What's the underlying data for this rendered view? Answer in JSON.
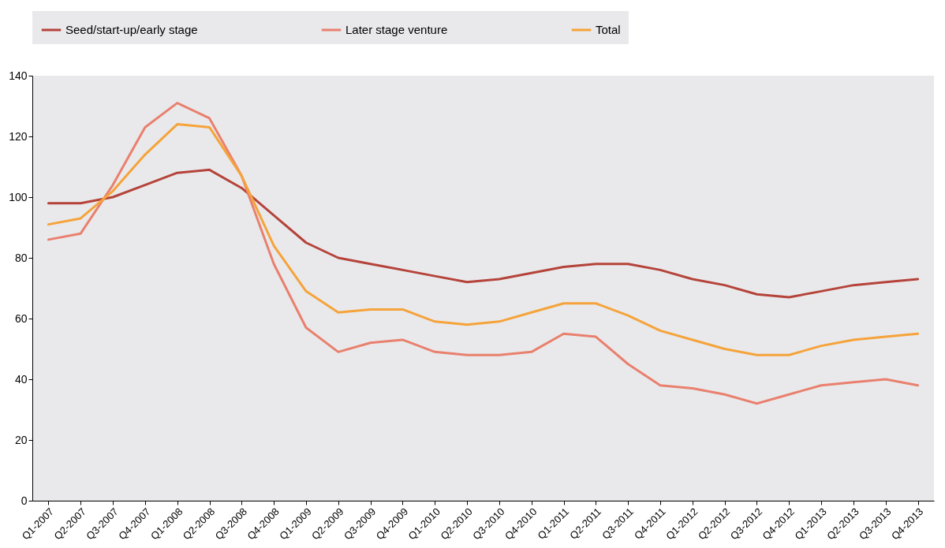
{
  "chart_data": {
    "type": "line",
    "categories": [
      "Q1-2007",
      "Q2-2007",
      "Q3-2007",
      "Q4-2007",
      "Q1-2008",
      "Q2-2008",
      "Q3-2008",
      "Q4-2008",
      "Q1-2009",
      "Q2-2009",
      "Q3-2009",
      "Q4-2009",
      "Q1-2010",
      "Q2-2010",
      "Q3-2010",
      "Q4-2010",
      "Q1-2011",
      "Q2-2011",
      "Q3-2011",
      "Q4-2011",
      "Q1-2012",
      "Q2-2012",
      "Q3-2012",
      "Q4-2012",
      "Q1-2013",
      "Q2-2013",
      "Q3-2013",
      "Q4-2013"
    ],
    "series": [
      {
        "name": "Seed/start-up/early stage",
        "color": "#b5433a",
        "values": [
          98,
          98,
          100,
          104,
          108,
          109,
          103,
          94,
          85,
          80,
          78,
          76,
          74,
          72,
          73,
          75,
          77,
          78,
          78,
          76,
          73,
          71,
          68,
          67,
          69,
          71,
          72,
          73
        ]
      },
      {
        "name": "Later stage venture",
        "color": "#e9806e",
        "values": [
          86,
          88,
          104,
          123,
          131,
          126,
          107,
          78,
          57,
          49,
          52,
          53,
          49,
          48,
          48,
          49,
          55,
          54,
          45,
          38,
          37,
          35,
          32,
          35,
          38,
          39,
          40,
          38
        ]
      },
      {
        "name": "Total",
        "color": "#f5a33a",
        "values": [
          91,
          93,
          102,
          114,
          124,
          123,
          107,
          84,
          69,
          62,
          63,
          63,
          59,
          58,
          59,
          62,
          65,
          65,
          61,
          56,
          53,
          50,
          48,
          48,
          51,
          53,
          54,
          55
        ]
      }
    ],
    "ylim": [
      0,
      140
    ],
    "yticks": [
      0,
      20,
      40,
      60,
      80,
      100,
      120,
      140
    ],
    "legend": "top",
    "line_style": "solid"
  }
}
